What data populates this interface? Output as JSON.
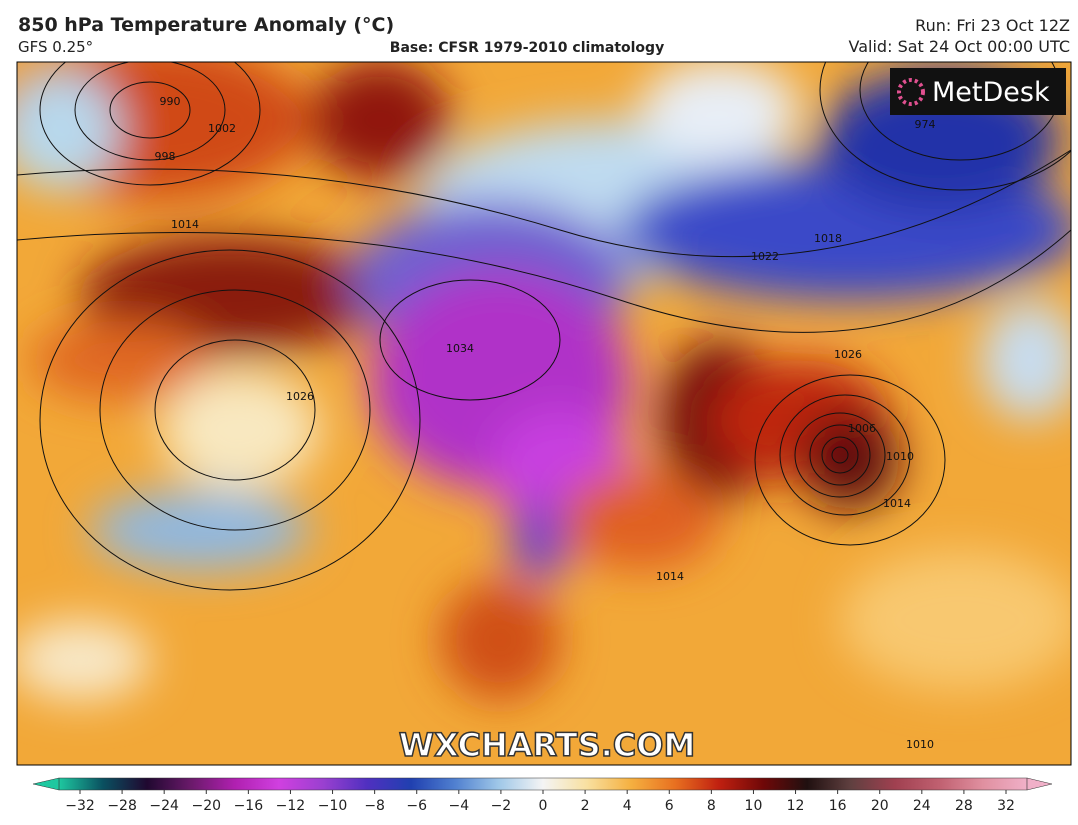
{
  "header": {
    "title": "850 hPa Temperature Anomaly (°C)",
    "model": "GFS 0.25°",
    "base": "Base: CFSR 1979-2010 climatology",
    "run": "Run: Fri 23 Oct 12Z",
    "valid": "Valid: Sat 24 Oct 00:00 UTC"
  },
  "logo": "MetDesk",
  "watermark": "WXCHARTS.COM",
  "isobars": [
    990,
    998,
    1002,
    1014,
    1026,
    1034,
    1018,
    1022,
    1026,
    1006,
    1010,
    1014,
    1014,
    974,
    1010
  ],
  "colorbar": {
    "ticks": [
      {
        "value": -32,
        "label": "−32"
      },
      {
        "value": -28,
        "label": "−28"
      },
      {
        "value": -24,
        "label": "−24"
      },
      {
        "value": -20,
        "label": "−20"
      },
      {
        "value": -16,
        "label": "−16"
      },
      {
        "value": -12,
        "label": "−12"
      },
      {
        "value": -10,
        "label": "−10"
      },
      {
        "value": -8,
        "label": "−8"
      },
      {
        "value": -6,
        "label": "−6"
      },
      {
        "value": -4,
        "label": "−4"
      },
      {
        "value": -2,
        "label": "−2"
      },
      0,
      2,
      4,
      6,
      8,
      10,
      12,
      16,
      20,
      24,
      28,
      32
    ],
    "colors": [
      "#1ec8a0",
      "#0a5060",
      "#200830",
      "#6a1a6a",
      "#b020b0",
      "#d040e0",
      "#9a40d0",
      "#5030c0",
      "#2040b0",
      "#5080d0",
      "#a0c8e8",
      "#f4f4f4",
      "#f8e0a0",
      "#f5b040",
      "#e87020",
      "#c02010",
      "#700808",
      "#201010",
      "#604040",
      "#a04050",
      "#c06070",
      "#e090a0",
      "#f0b0c8"
    ]
  }
}
